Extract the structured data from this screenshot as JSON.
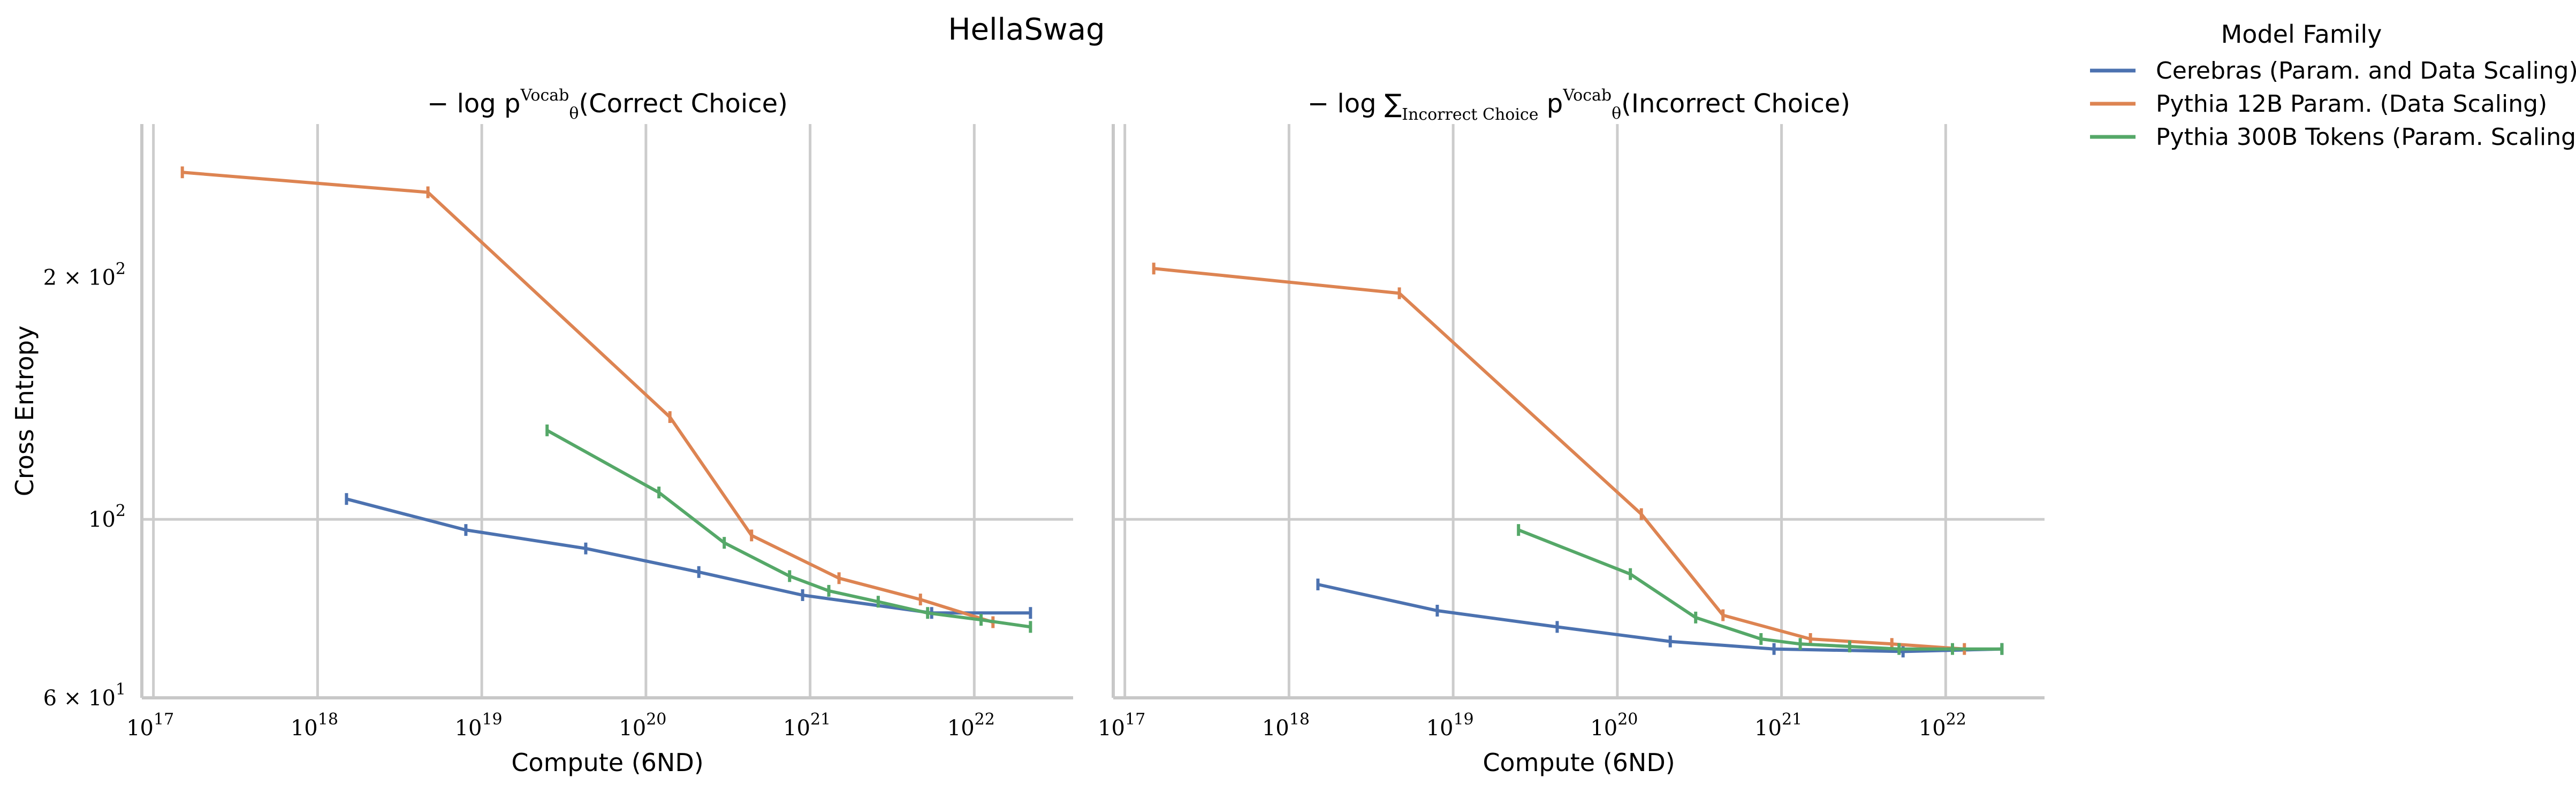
{
  "figure": {
    "title": "HellaSwag"
  },
  "legend": {
    "title": "Model Family",
    "entries": [
      {
        "label": "Cerebras (Param. and Data Scaling)",
        "color": "#4c72b0"
      },
      {
        "label": "Pythia 12B Param. (Data Scaling)",
        "color": "#dd8452"
      },
      {
        "label": "Pythia 300B Tokens (Param. Scaling)",
        "color": "#55a868"
      }
    ]
  },
  "chart_data": [
    {
      "type": "line",
      "title_prefix": "− log p",
      "title_sup": "Vocab",
      "title_sub": "θ",
      "title_suffix": "(Correct Choice)",
      "xlabel": "Compute (6ND)",
      "ylabel": "Cross Entropy",
      "xscale": "log",
      "yscale": "log",
      "xlim": [
        8.5e+16,
        4e+22
      ],
      "ylim": [
        60,
        310
      ],
      "x_ticks": [
        {
          "base": "10",
          "exp": "17",
          "v": 1e+17
        },
        {
          "base": "10",
          "exp": "18",
          "v": 1e+18
        },
        {
          "base": "10",
          "exp": "19",
          "v": 1e+19
        },
        {
          "base": "10",
          "exp": "20",
          "v": 1e+20
        },
        {
          "base": "10",
          "exp": "21",
          "v": 1e+21
        },
        {
          "base": "10",
          "exp": "22",
          "v": 1e+22
        }
      ],
      "y_ticks": [
        {
          "base": "6 × 10",
          "exp": "1",
          "v": 60
        },
        {
          "base": "10",
          "exp": "2",
          "v": 100
        },
        {
          "base": "2 × 10",
          "exp": "2",
          "v": 200
        }
      ],
      "grid": true,
      "series": [
        {
          "name": "Cerebras (Param. and Data Scaling)",
          "color": "#4c72b0",
          "x": [
            1.5e+18,
            8e+18,
            4.3e+19,
            2.1e+20,
            9e+20,
            5.5e+21,
            2.2e+22
          ],
          "y": [
            106,
            97,
            92,
            86,
            80.5,
            76.5,
            76.5
          ]
        },
        {
          "name": "Pythia 12B Param. (Data Scaling)",
          "color": "#dd8452",
          "x": [
            1.5e+17,
            4.7e+18,
            1.4e+20,
            4.4e+20,
            1.5e+21,
            4.7e+21,
            1.3e+22
          ],
          "y": [
            270,
            255,
            134,
            95.5,
            84.5,
            79.5,
            74.5
          ]
        },
        {
          "name": "Pythia 300B Tokens (Param. Scaling)",
          "color": "#55a868",
          "x": [
            2.5e+19,
            1.2e+20,
            3e+20,
            7.5e+20,
            1.3e+21,
            2.6e+21,
            5.2e+21,
            1.1e+22,
            2.2e+22
          ],
          "y": [
            129,
            108,
            93.5,
            85,
            81.5,
            79,
            76.5,
            75,
            73.5
          ]
        }
      ]
    },
    {
      "type": "line",
      "title_prefix": "− log ∑",
      "title_sumsub": "Incorrect Choice",
      "title_mid": " p",
      "title_sup": "Vocab",
      "title_sub": "θ",
      "title_suffix": "(Incorrect Choice)",
      "xlabel": "Compute (6ND)",
      "xscale": "log",
      "yscale": "log",
      "xlim": [
        8.5e+16,
        4e+22
      ],
      "ylim": [
        60,
        310
      ],
      "x_ticks": [
        {
          "base": "10",
          "exp": "17",
          "v": 1e+17
        },
        {
          "base": "10",
          "exp": "18",
          "v": 1e+18
        },
        {
          "base": "10",
          "exp": "19",
          "v": 1e+19
        },
        {
          "base": "10",
          "exp": "20",
          "v": 1e+20
        },
        {
          "base": "10",
          "exp": "21",
          "v": 1e+21
        },
        {
          "base": "10",
          "exp": "22",
          "v": 1e+22
        }
      ],
      "grid": true,
      "series": [
        {
          "name": "Cerebras (Param. and Data Scaling)",
          "color": "#4c72b0",
          "x": [
            1.5e+18,
            8e+18,
            4.3e+19,
            2.1e+20,
            9e+20,
            5.5e+21,
            2.2e+22
          ],
          "y": [
            83,
            77,
            73.5,
            70.5,
            69,
            68.5,
            69
          ]
        },
        {
          "name": "Pythia 12B Param. (Data Scaling)",
          "color": "#dd8452",
          "x": [
            1.5e+17,
            4.7e+18,
            1.4e+20,
            4.4e+20,
            1.5e+21,
            4.7e+21,
            1.3e+22
          ],
          "y": [
            205,
            191,
            101.5,
            76,
            71,
            70,
            69
          ]
        },
        {
          "name": "Pythia 300B Tokens (Param. Scaling)",
          "color": "#55a868",
          "x": [
            2.5e+19,
            1.2e+20,
            3e+20,
            7.5e+20,
            1.3e+21,
            2.6e+21,
            5.2e+21,
            1.1e+22,
            2.2e+22
          ],
          "y": [
            97,
            85.5,
            75.5,
            71,
            70,
            69.5,
            69,
            69,
            69
          ]
        }
      ]
    }
  ]
}
